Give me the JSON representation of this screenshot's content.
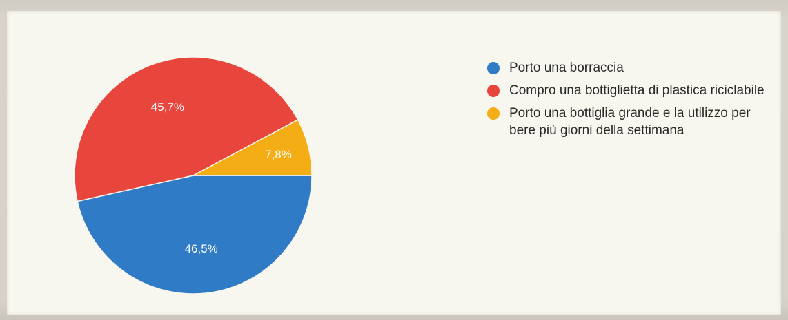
{
  "chart_data": {
    "type": "pie",
    "title": "",
    "slices": [
      {
        "label": "Porto una borraccia",
        "value": 46.5,
        "value_label": "46,5%",
        "color": "#2f7bc5"
      },
      {
        "label": "Compro una bottiglietta di plastica riciclabile",
        "value": 45.7,
        "value_label": "45,7%",
        "color": "#e8453d"
      },
      {
        "label": "Porto una bottiglia grande e la utilizzo per bere più giorni della settimana",
        "value": 7.8,
        "value_label": "7,8%",
        "color": "#f4ad14"
      }
    ],
    "legend_position": "right"
  }
}
